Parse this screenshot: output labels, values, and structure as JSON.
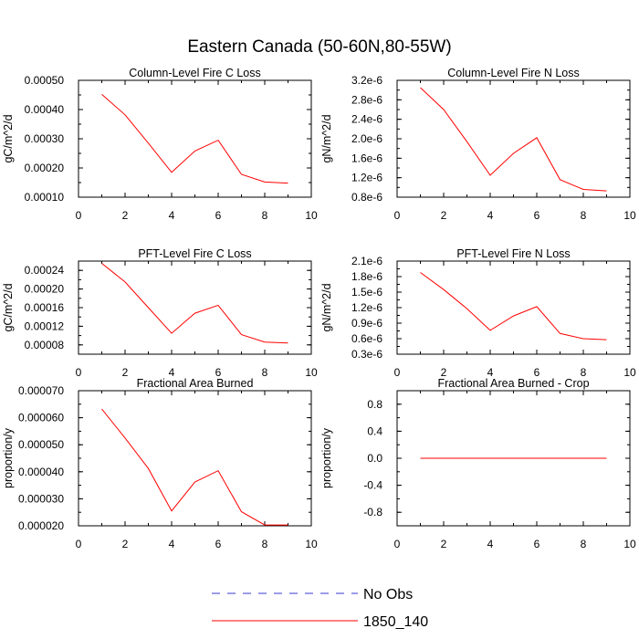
{
  "figure": {
    "title": "Eastern Canada (50-60N,80-55W)"
  },
  "legend": {
    "entries": [
      {
        "label": "No Obs",
        "color": "#3a3ad0",
        "dash": true
      },
      {
        "label": "1850_140",
        "color": "#ff0000",
        "dash": false
      }
    ]
  },
  "chart_data": [
    {
      "type": "line",
      "title": "Column-Level Fire C Loss",
      "ylabel": "gC/m^2/d",
      "xlim": [
        0,
        10
      ],
      "x_ticks": [
        "0",
        "2",
        "4",
        "6",
        "8",
        "10"
      ],
      "ylim": [
        0.0001,
        0.0005
      ],
      "y_ticks": [
        {
          "v": 0.0001,
          "label": "0.00010"
        },
        {
          "v": 0.0002,
          "label": "0.00020"
        },
        {
          "v": 0.0003,
          "label": "0.00030"
        },
        {
          "v": 0.0004,
          "label": "0.00040"
        },
        {
          "v": 0.0005,
          "label": "0.00050"
        }
      ],
      "series": [
        {
          "name": "1850_140",
          "color": "#ff0000",
          "x": [
            1,
            2,
            3,
            4,
            5,
            6,
            7,
            8,
            9
          ],
          "values": [
            0.000452,
            0.000382,
            0.000285,
            0.000185,
            0.000258,
            0.000295,
            0.000178,
            0.000152,
            0.000148
          ]
        }
      ]
    },
    {
      "type": "line",
      "title": "Column-Level Fire N Loss",
      "ylabel": "gN/m^2/d",
      "xlim": [
        0,
        10
      ],
      "x_ticks": [
        "0",
        "2",
        "4",
        "6",
        "8",
        "10"
      ],
      "ylim": [
        8e-07,
        3.2e-06
      ],
      "y_ticks": [
        {
          "v": 8e-07,
          "label": "0.8e-6"
        },
        {
          "v": 1.2e-06,
          "label": "1.2e-6"
        },
        {
          "v": 1.6e-06,
          "label": "1.6e-6"
        },
        {
          "v": 2e-06,
          "label": "2.0e-6"
        },
        {
          "v": 2.4e-06,
          "label": "2.4e-6"
        },
        {
          "v": 2.8e-06,
          "label": "2.8e-6"
        },
        {
          "v": 3.2e-06,
          "label": "3.2e-6"
        }
      ],
      "series": [
        {
          "name": "1850_140",
          "color": "#ff0000",
          "x": [
            1,
            2,
            3,
            4,
            5,
            6,
            7,
            8,
            9
          ],
          "values": [
            3.05e-06,
            2.6e-06,
            1.94e-06,
            1.25e-06,
            1.7e-06,
            2.02e-06,
            1.16e-06,
            9.6e-07,
            9.3e-07
          ]
        }
      ]
    },
    {
      "type": "line",
      "title": "PFT-Level Fire C Loss",
      "ylabel": "gC/m^2/d",
      "xlim": [
        0,
        10
      ],
      "x_ticks": [
        "0",
        "2",
        "4",
        "6",
        "8",
        "10"
      ],
      "ylim": [
        6e-05,
        0.00026
      ],
      "y_ticks": [
        {
          "v": 8e-05,
          "label": "0.00008"
        },
        {
          "v": 0.00012,
          "label": "0.00012"
        },
        {
          "v": 0.00016,
          "label": "0.00016"
        },
        {
          "v": 0.0002,
          "label": "0.00020"
        },
        {
          "v": 0.00024,
          "label": "0.00024"
        }
      ],
      "series": [
        {
          "name": "1850_140",
          "color": "#ff0000",
          "x": [
            1,
            2,
            3,
            4,
            5,
            6,
            7,
            8,
            9
          ],
          "values": [
            0.000255,
            0.000215,
            0.00016,
            0.000105,
            0.000148,
            0.000165,
            0.000102,
            8.6e-05,
            8.4e-05
          ]
        }
      ]
    },
    {
      "type": "line",
      "title": "PFT-Level Fire N Loss",
      "ylabel": "gN/m^2/d",
      "xlim": [
        0,
        10
      ],
      "x_ticks": [
        "0",
        "2",
        "4",
        "6",
        "8",
        "10"
      ],
      "ylim": [
        3e-07,
        2.1e-06
      ],
      "y_ticks": [
        {
          "v": 3e-07,
          "label": "0.3e-6"
        },
        {
          "v": 6e-07,
          "label": "0.6e-6"
        },
        {
          "v": 9e-07,
          "label": "0.9e-6"
        },
        {
          "v": 1.2e-06,
          "label": "1.2e-6"
        },
        {
          "v": 1.5e-06,
          "label": "1.5e-6"
        },
        {
          "v": 1.8e-06,
          "label": "1.8e-6"
        },
        {
          "v": 2.1e-06,
          "label": "2.1e-6"
        }
      ],
      "series": [
        {
          "name": "1850_140",
          "color": "#ff0000",
          "x": [
            1,
            2,
            3,
            4,
            5,
            6,
            7,
            8,
            9
          ],
          "values": [
            1.88e-06,
            1.55e-06,
            1.18e-06,
            7.6e-07,
            1.04e-06,
            1.22e-06,
            7e-07,
            6e-07,
            5.8e-07
          ]
        }
      ]
    },
    {
      "type": "line",
      "title": "Fractional Area Burned",
      "ylabel": "proportion/y",
      "xlim": [
        0,
        10
      ],
      "x_ticks": [
        "0",
        "2",
        "4",
        "6",
        "8",
        "10"
      ],
      "ylim": [
        2e-05,
        7e-05
      ],
      "y_ticks": [
        {
          "v": 2e-05,
          "label": "0.000020"
        },
        {
          "v": 3e-05,
          "label": "0.000030"
        },
        {
          "v": 4e-05,
          "label": "0.000040"
        },
        {
          "v": 5e-05,
          "label": "0.000050"
        },
        {
          "v": 6e-05,
          "label": "0.000060"
        },
        {
          "v": 7e-05,
          "label": "0.000070"
        }
      ],
      "series": [
        {
          "name": "1850_140",
          "color": "#ff0000",
          "x": [
            1,
            2,
            3,
            4,
            5,
            6,
            7,
            8,
            9
          ],
          "values": [
            6.32e-05,
            5.25e-05,
            4.12e-05,
            2.55e-05,
            3.62e-05,
            4.04e-05,
            2.52e-05,
            2.03e-05,
            2.03e-05
          ]
        }
      ]
    },
    {
      "type": "line",
      "title": "Fractional Area Burned - Crop",
      "ylabel": "proportion/y",
      "xlim": [
        0,
        10
      ],
      "x_ticks": [
        "0",
        "2",
        "4",
        "6",
        "8",
        "10"
      ],
      "ylim": [
        -1.0,
        1.0
      ],
      "y_ticks": [
        {
          "v": -0.8,
          "label": "-0.8"
        },
        {
          "v": -0.4,
          "label": "-0.4"
        },
        {
          "v": 0.0,
          "label": "0.0"
        },
        {
          "v": 0.4,
          "label": "0.4"
        },
        {
          "v": 0.8,
          "label": "0.8"
        }
      ],
      "series": [
        {
          "name": "1850_140",
          "color": "#ff0000",
          "x": [
            1,
            2,
            3,
            4,
            5,
            6,
            7,
            8,
            9
          ],
          "values": [
            0,
            0,
            0,
            0,
            0,
            0,
            0,
            0,
            0
          ]
        }
      ]
    }
  ]
}
